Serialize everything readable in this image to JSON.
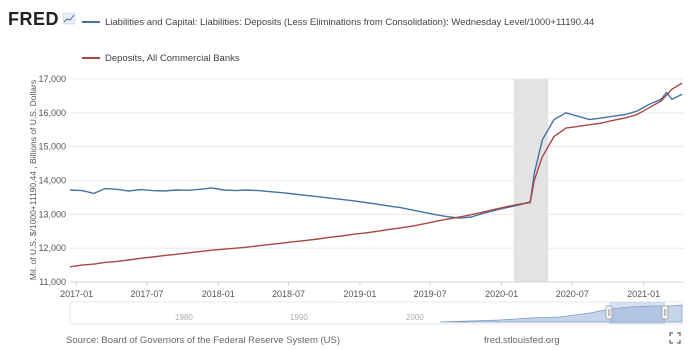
{
  "logo": {
    "text": "FRED"
  },
  "legend": [
    {
      "name": "Liabilities and Capital: Liabilities: Deposits (Less Eliminations from Consolidation): Wednesday Level/1000+11190.44",
      "color": "#4572a7"
    },
    {
      "name": "Deposits, All Commercial Banks",
      "color": "#aa4643"
    }
  ],
  "footer": {
    "source": "Source: Board of Governors of the Federal Reserve System (US)",
    "site": "fred.stlouisfed.org"
  },
  "navigator": {
    "labels": [
      "1980",
      "1990",
      "2000"
    ]
  },
  "chart_data": {
    "type": "line",
    "ylabel": "Mil. of U.S. $/1000+11190.44 , Billions of U.S. Dollars",
    "xlim": [
      "2016-12-15",
      "2021-04-15"
    ],
    "ylim": [
      11000,
      17000
    ],
    "yticks": [
      {
        "value": 11000,
        "label": "11,000"
      },
      {
        "value": 12000,
        "label": "12,000"
      },
      {
        "value": 13000,
        "label": "13,000"
      },
      {
        "value": 14000,
        "label": "14,000"
      },
      {
        "value": 15000,
        "label": "15,000"
      },
      {
        "value": 16000,
        "label": "16,000"
      },
      {
        "value": 17000,
        "label": "17,000"
      }
    ],
    "xticks": [
      {
        "date": "2017-01-01",
        "label": "2017-01"
      },
      {
        "date": "2017-07-01",
        "label": "2017-07"
      },
      {
        "date": "2018-01-01",
        "label": "2018-01"
      },
      {
        "date": "2018-07-01",
        "label": "2018-07"
      },
      {
        "date": "2019-01-01",
        "label": "2019-01"
      },
      {
        "date": "2019-07-01",
        "label": "2019-07"
      },
      {
        "date": "2020-01-01",
        "label": "2020-01"
      },
      {
        "date": "2020-07-01",
        "label": "2020-07"
      },
      {
        "date": "2021-01-01",
        "label": "2021-01"
      }
    ],
    "recession": [
      "2020-02-01",
      "2020-04-30"
    ],
    "grid": true,
    "legend_position": "top-left",
    "series": [
      {
        "name": "Liabilities and Capital: Liabilities: Deposits (Less Eliminations from Consolidation): Wednesday Level/1000+11190.44",
        "color": "#4572a7",
        "points": [
          [
            "2016-12-15",
            13720
          ],
          [
            "2017-01-15",
            13700
          ],
          [
            "2017-02-15",
            13620
          ],
          [
            "2017-03-15",
            13760
          ],
          [
            "2017-04-15",
            13740
          ],
          [
            "2017-05-15",
            13690
          ],
          [
            "2017-06-15",
            13730
          ],
          [
            "2017-07-15",
            13700
          ],
          [
            "2017-08-15",
            13690
          ],
          [
            "2017-09-15",
            13720
          ],
          [
            "2017-10-15",
            13710
          ],
          [
            "2017-11-15",
            13740
          ],
          [
            "2017-12-15",
            13780
          ],
          [
            "2018-01-15",
            13720
          ],
          [
            "2018-02-15",
            13700
          ],
          [
            "2018-03-15",
            13720
          ],
          [
            "2018-04-15",
            13700
          ],
          [
            "2018-05-15",
            13670
          ],
          [
            "2018-06-15",
            13640
          ],
          [
            "2018-07-15",
            13600
          ],
          [
            "2018-08-15",
            13560
          ],
          [
            "2018-09-15",
            13520
          ],
          [
            "2018-10-15",
            13480
          ],
          [
            "2018-11-15",
            13440
          ],
          [
            "2018-12-15",
            13400
          ],
          [
            "2019-01-15",
            13350
          ],
          [
            "2019-02-15",
            13300
          ],
          [
            "2019-03-15",
            13250
          ],
          [
            "2019-04-15",
            13200
          ],
          [
            "2019-05-15",
            13130
          ],
          [
            "2019-06-15",
            13060
          ],
          [
            "2019-07-15",
            12990
          ],
          [
            "2019-08-15",
            12930
          ],
          [
            "2019-09-15",
            12890
          ],
          [
            "2019-10-15",
            12920
          ],
          [
            "2019-11-15",
            13030
          ],
          [
            "2019-12-15",
            13120
          ],
          [
            "2020-01-15",
            13200
          ],
          [
            "2020-02-15",
            13280
          ],
          [
            "2020-03-15",
            13370
          ],
          [
            "2020-03-25",
            14200
          ],
          [
            "2020-04-15",
            15200
          ],
          [
            "2020-05-15",
            15800
          ],
          [
            "2020-06-15",
            16000
          ],
          [
            "2020-07-15",
            15900
          ],
          [
            "2020-08-15",
            15800
          ],
          [
            "2020-09-15",
            15850
          ],
          [
            "2020-10-15",
            15900
          ],
          [
            "2020-11-15",
            15950
          ],
          [
            "2020-12-15",
            16050
          ],
          [
            "2021-01-15",
            16250
          ],
          [
            "2021-02-15",
            16400
          ],
          [
            "2021-03-01",
            16600
          ],
          [
            "2021-03-15",
            16400
          ],
          [
            "2021-04-10",
            16550
          ]
        ]
      },
      {
        "name": "Deposits, All Commercial Banks",
        "color": "#aa4643",
        "points": [
          [
            "2016-12-15",
            11450
          ],
          [
            "2017-01-15",
            11500
          ],
          [
            "2017-02-15",
            11530
          ],
          [
            "2017-03-15",
            11580
          ],
          [
            "2017-04-15",
            11610
          ],
          [
            "2017-05-15",
            11650
          ],
          [
            "2017-06-15",
            11700
          ],
          [
            "2017-07-15",
            11740
          ],
          [
            "2017-08-15",
            11780
          ],
          [
            "2017-09-15",
            11820
          ],
          [
            "2017-10-15",
            11860
          ],
          [
            "2017-11-15",
            11900
          ],
          [
            "2017-12-15",
            11940
          ],
          [
            "2018-01-15",
            11970
          ],
          [
            "2018-02-15",
            12000
          ],
          [
            "2018-03-15",
            12030
          ],
          [
            "2018-04-15",
            12070
          ],
          [
            "2018-05-15",
            12110
          ],
          [
            "2018-06-15",
            12150
          ],
          [
            "2018-07-15",
            12190
          ],
          [
            "2018-08-15",
            12230
          ],
          [
            "2018-09-15",
            12270
          ],
          [
            "2018-10-15",
            12320
          ],
          [
            "2018-11-15",
            12360
          ],
          [
            "2018-12-15",
            12410
          ],
          [
            "2019-01-15",
            12450
          ],
          [
            "2019-02-15",
            12500
          ],
          [
            "2019-03-15",
            12550
          ],
          [
            "2019-04-15",
            12600
          ],
          [
            "2019-05-15",
            12650
          ],
          [
            "2019-06-15",
            12720
          ],
          [
            "2019-07-15",
            12790
          ],
          [
            "2019-08-15",
            12860
          ],
          [
            "2019-09-15",
            12920
          ],
          [
            "2019-10-15",
            12990
          ],
          [
            "2019-11-15",
            13070
          ],
          [
            "2019-12-15",
            13150
          ],
          [
            "2020-01-15",
            13230
          ],
          [
            "2020-02-15",
            13300
          ],
          [
            "2020-03-15",
            13350
          ],
          [
            "2020-03-25",
            14000
          ],
          [
            "2020-04-15",
            14700
          ],
          [
            "2020-05-15",
            15300
          ],
          [
            "2020-06-15",
            15550
          ],
          [
            "2020-07-15",
            15600
          ],
          [
            "2020-08-15",
            15650
          ],
          [
            "2020-09-15",
            15700
          ],
          [
            "2020-10-15",
            15780
          ],
          [
            "2020-11-15",
            15850
          ],
          [
            "2020-12-15",
            15950
          ],
          [
            "2021-01-15",
            16150
          ],
          [
            "2021-02-15",
            16350
          ],
          [
            "2021-03-15",
            16700
          ],
          [
            "2021-04-10",
            16880
          ]
        ]
      }
    ]
  }
}
